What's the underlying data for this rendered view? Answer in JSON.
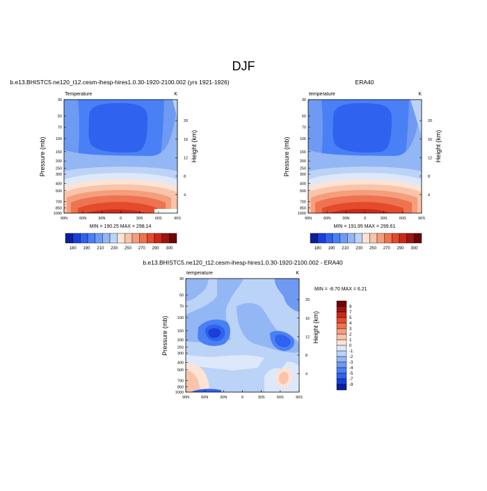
{
  "title": "DJF",
  "colors": {
    "ramp": [
      "#0a1f9e",
      "#1a3fd6",
      "#2f62ee",
      "#4a80f5",
      "#6f9af3",
      "#93b6f4",
      "#bcd3f8",
      "#dde8fb",
      "#fbe3d5",
      "#f9c4aa",
      "#f59e7c",
      "#ee7350",
      "#e44a2c",
      "#c9291a",
      "#9d1510",
      "#6b0606"
    ]
  },
  "chart_data": [
    {
      "type": "heatmap",
      "run_title": "b.e13.BHISTC5.ne120_t12.cesm-ihesp-hires1.0.30-1920-2100.002 (yrs 1921-1926)",
      "left_label": "Temperature",
      "right_label": "K",
      "ylabel": "Pressure (mb)",
      "ylabel_right": "Height (km)",
      "x_ticks": [
        "90N",
        "60N",
        "30N",
        "0",
        "30S",
        "60S",
        "90S"
      ],
      "y_ticks": [
        "30",
        "50",
        "70",
        "100",
        "150",
        "200",
        "250",
        "300",
        "400",
        "500",
        "700",
        "850",
        "1000"
      ],
      "y_ticks_right": [
        "20",
        "16",
        "12",
        "8",
        "4"
      ],
      "stats": "MIN = 190.25   MAX = 298.14",
      "colorbar_labels": [
        "180",
        "190",
        "210",
        "230",
        "250",
        "270",
        "290",
        "300"
      ],
      "colorbar_levels": 15
    },
    {
      "type": "heatmap",
      "run_title": "ERA40",
      "left_label": "temperature",
      "right_label": "K",
      "ylabel": "Pressure (mb)",
      "ylabel_right": "Height (km)",
      "x_ticks": [
        "90N",
        "60N",
        "30N",
        "0",
        "30S",
        "60S",
        "90S"
      ],
      "y_ticks": [
        "30",
        "50",
        "70",
        "100",
        "150",
        "200",
        "250",
        "300",
        "400",
        "500",
        "700",
        "850",
        "1000"
      ],
      "y_ticks_right": [
        "20",
        "16",
        "12",
        "8",
        "4"
      ],
      "stats": "MIN = 191.95   MAX = 299.61",
      "colorbar_labels": [
        "180",
        "190",
        "210",
        "230",
        "250",
        "270",
        "290",
        "300"
      ],
      "colorbar_levels": 15
    },
    {
      "type": "heatmap",
      "run_title": "b.e13.BHISTC5.ne120_t12.cesm-ihesp-hires1.0.30-1920-2100.002 - ERA40",
      "left_label": "temperature",
      "right_label": "K",
      "ylabel": "Pressure (mb)",
      "ylabel_right": "Height (km)",
      "x_ticks": [
        "90N",
        "60N",
        "30N",
        "0",
        "30S",
        "60S",
        "90S"
      ],
      "y_ticks": [
        "30",
        "50",
        "70",
        "100",
        "150",
        "200",
        "250",
        "300",
        "400",
        "500",
        "700",
        "850",
        "1000"
      ],
      "y_ticks_right": [
        "20",
        "16",
        "12",
        "8",
        "4"
      ],
      "stats": "MIN = -8.70   MAX =   6.21",
      "colorbar_labels": [
        "9",
        "7",
        "5",
        "4",
        "3",
        "2",
        "1",
        "0",
        "-1",
        "-2",
        "-3",
        "-4",
        "-5",
        "-7",
        "-9"
      ],
      "colorbar_levels": 16
    }
  ]
}
